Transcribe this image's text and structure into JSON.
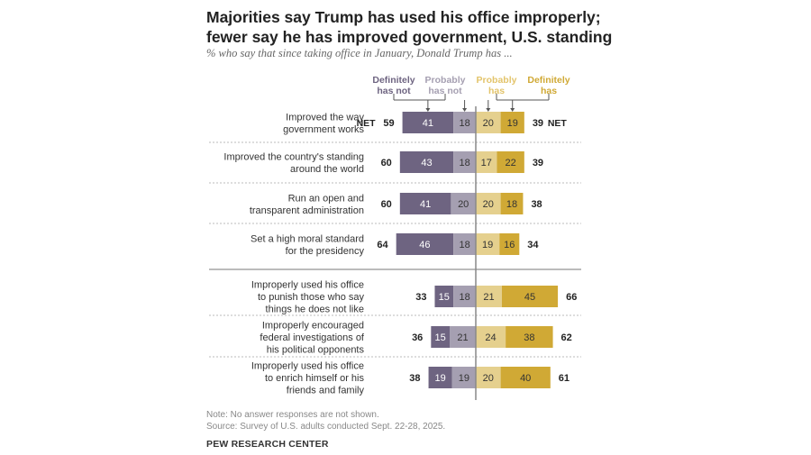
{
  "title_lines": [
    "Majorities say Trump has used his office improperly;",
    "fewer say he has improved government, U.S. standing"
  ],
  "subtitle": "% who say that since taking office in January, Donald Trump has ...",
  "note": "Note: No answer responses are not shown.",
  "source": "Source: Survey of U.S. adults conducted Sept. 22-28, 2025.",
  "credit": "PEW RESEARCH CENTER",
  "colors": {
    "definitely_not": "#6e6481",
    "probably_not": "#a59fb1",
    "probably_has": "#e5d08e",
    "definitely_has": "#d0a935"
  },
  "chart_data": {
    "type": "bar",
    "orientation": "horizontal-diverging",
    "legend": [
      {
        "key": "definitely_not",
        "lines": [
          "Definitely",
          "has not"
        ]
      },
      {
        "key": "probably_not",
        "lines": [
          "Probably",
          "has not"
        ]
      },
      {
        "key": "probably_has",
        "lines": [
          "Probably",
          "has"
        ]
      },
      {
        "key": "definitely_has",
        "lines": [
          "Definitely",
          "has"
        ]
      }
    ],
    "net_label": "NET",
    "categories": [
      {
        "lines": [
          "Improved the way",
          "government works"
        ],
        "net_not": 59,
        "definitely_not": 41,
        "probably_not": 18,
        "probably_has": 20,
        "definitely_has": 19,
        "net_has": 39,
        "show_net": true
      },
      {
        "lines": [
          "Improved the country's standing",
          "around the world"
        ],
        "net_not": 60,
        "definitely_not": 43,
        "probably_not": 18,
        "probably_has": 17,
        "definitely_has": 22,
        "net_has": 39,
        "show_net": false
      },
      {
        "lines": [
          "Run an open and",
          "transparent administration"
        ],
        "net_not": 60,
        "definitely_not": 41,
        "probably_not": 20,
        "probably_has": 20,
        "definitely_has": 18,
        "net_has": 38,
        "show_net": false
      },
      {
        "lines": [
          "Set a high moral standard",
          "for the presidency"
        ],
        "net_not": 64,
        "definitely_not": 46,
        "probably_not": 18,
        "probably_has": 19,
        "definitely_has": 16,
        "net_has": 34,
        "show_net": false
      },
      {
        "lines": [
          "Improperly used his office",
          "to punish those who say",
          "things he does not like"
        ],
        "net_not": 33,
        "definitely_not": 15,
        "probably_not": 18,
        "probably_has": 21,
        "definitely_has": 45,
        "net_has": 66,
        "show_net": false
      },
      {
        "lines": [
          "Improperly encouraged",
          "federal investigations of",
          "his political opponents"
        ],
        "net_not": 36,
        "definitely_not": 15,
        "probably_not": 21,
        "probably_has": 24,
        "definitely_has": 38,
        "net_has": 62,
        "show_net": false
      },
      {
        "lines": [
          "Improperly used his office",
          "to enrich himself or his",
          "friends and family"
        ],
        "net_not": 38,
        "definitely_not": 19,
        "probably_not": 19,
        "probably_has": 20,
        "definitely_has": 40,
        "net_has": 61,
        "show_net": false
      }
    ]
  }
}
